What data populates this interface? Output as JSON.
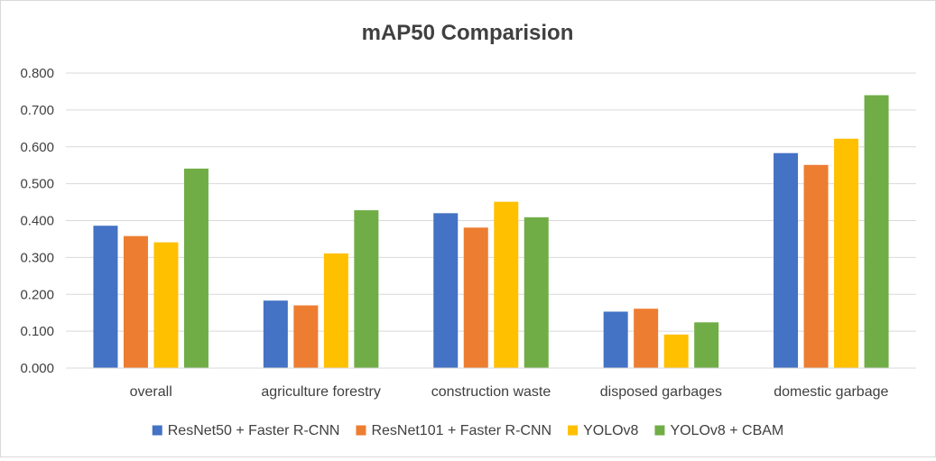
{
  "chart_data": {
    "type": "bar",
    "title": "mAP50 Comparision",
    "xlabel": "",
    "ylabel": "",
    "ylim": [
      0,
      0.8
    ],
    "yticks": [
      "0.000",
      "0.100",
      "0.200",
      "0.300",
      "0.400",
      "0.500",
      "0.600",
      "0.700",
      "0.800"
    ],
    "grid": true,
    "legend_position": "bottom",
    "categories": [
      "overall",
      "agriculture forestry",
      "construction waste",
      "disposed garbages",
      "domestic garbage"
    ],
    "series": [
      {
        "name": "ResNet50 + Faster R-CNN",
        "color": "#4472C4",
        "values": [
          0.386,
          0.183,
          0.42,
          0.153,
          0.583
        ]
      },
      {
        "name": "ResNet101 + Faster R-CNN",
        "color": "#ED7D31",
        "values": [
          0.358,
          0.17,
          0.381,
          0.161,
          0.551
        ]
      },
      {
        "name": "YOLOv8",
        "color": "#FFC000",
        "values": [
          0.341,
          0.311,
          0.451,
          0.091,
          0.622
        ]
      },
      {
        "name": "YOLOv8 + CBAM",
        "color": "#70AD47",
        "values": [
          0.541,
          0.428,
          0.409,
          0.124,
          0.74
        ]
      }
    ]
  }
}
